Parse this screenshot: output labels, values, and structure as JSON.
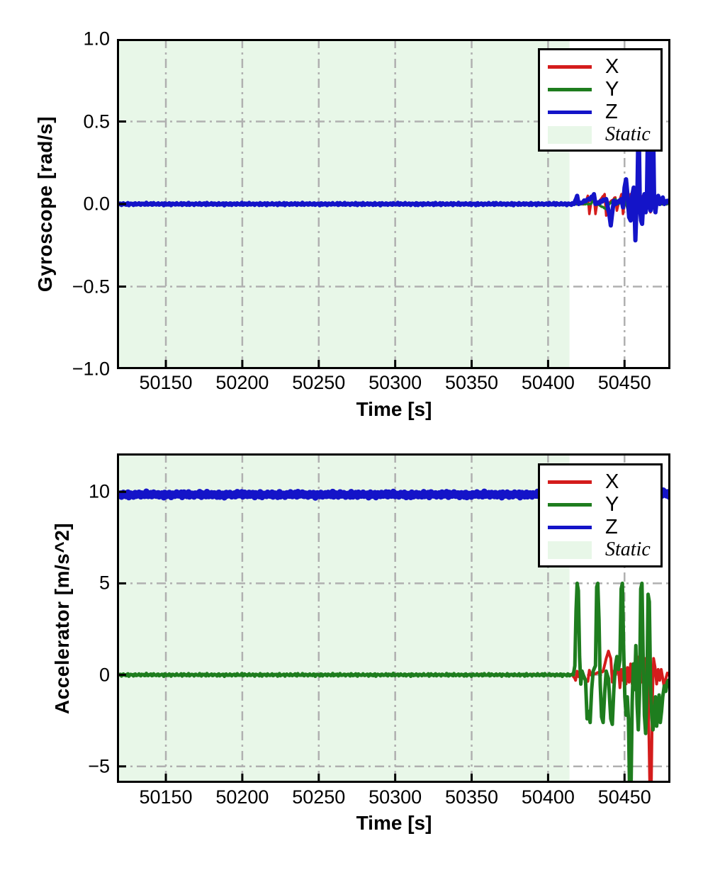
{
  "page": {
    "background": "#ffffff"
  },
  "colors": {
    "x_series": "#d41c1c",
    "y_series": "#1e7d1e",
    "z_series": "#1414c8",
    "static_fill": "#e8f7e8",
    "grid": "#b0b0b0",
    "axis": "#000000"
  },
  "chart_data": [
    {
      "type": "line",
      "id": "gyroscope",
      "title": "",
      "xlabel": "Time [s]",
      "ylabel": "Gyroscope [rad/s]",
      "xlim": [
        50118,
        50480
      ],
      "ylim": [
        -1.0,
        1.0
      ],
      "xtick_values": [
        50150,
        50200,
        50250,
        50300,
        50350,
        50400,
        50450
      ],
      "xtick_labels": [
        "50150",
        "50200",
        "50250",
        "50300",
        "50350",
        "50400",
        "50450"
      ],
      "ytick_values": [
        1.0,
        0.5,
        0.0,
        -0.5,
        -1.0
      ],
      "ytick_labels": [
        "1.0",
        "0.5",
        "0.0",
        "−0.5",
        "−1.0"
      ],
      "grid": true,
      "grid_style": "dash-dot",
      "legend_position": "upper right",
      "static_region": {
        "start": 50118,
        "end": 50414,
        "color": "#e8f7e8",
        "label": "Static"
      },
      "series": [
        {
          "name": "X",
          "color": "#d41c1c",
          "width": 3.5,
          "noise": 0.004,
          "points": [
            [
              50118,
              0
            ],
            [
              50424,
              0
            ],
            [
              50426,
              0.05
            ],
            [
              50427,
              -0.06
            ],
            [
              50428,
              0
            ],
            [
              50430,
              0.05
            ],
            [
              50431,
              -0.06
            ],
            [
              50432,
              0
            ],
            [
              50437,
              0.06
            ],
            [
              50438,
              -0.07
            ],
            [
              50439,
              0
            ],
            [
              50444,
              0.04
            ],
            [
              50445,
              -0.04
            ],
            [
              50446,
              0
            ],
            [
              50448,
              0.06
            ],
            [
              50449,
              -0.06
            ],
            [
              50450,
              0
            ],
            [
              50452,
              0.05
            ],
            [
              50453,
              -0.05
            ],
            [
              50454,
              0.06
            ],
            [
              50455,
              -0.04
            ],
            [
              50456,
              0
            ],
            [
              50458,
              0.05
            ],
            [
              50459,
              -0.05
            ],
            [
              50460,
              0.06
            ],
            [
              50461,
              -0.04
            ],
            [
              50462,
              0.05
            ],
            [
              50463,
              -0.05
            ],
            [
              50464,
              0.04
            ],
            [
              50465,
              0
            ],
            [
              50466,
              0.05
            ],
            [
              50467,
              -0.05
            ],
            [
              50468,
              0
            ],
            [
              50470,
              0.03
            ],
            [
              50472,
              0
            ],
            [
              50480,
              0
            ]
          ]
        },
        {
          "name": "Y",
          "color": "#1e7d1e",
          "width": 3.5,
          "noise": 0.003,
          "points": [
            [
              50118,
              0
            ],
            [
              50428,
              0
            ],
            [
              50430,
              0.03
            ],
            [
              50432,
              0
            ],
            [
              50438,
              -0.03
            ],
            [
              50440,
              0
            ],
            [
              50444,
              0.03
            ],
            [
              50446,
              0
            ],
            [
              50450,
              0.04
            ],
            [
              50452,
              -0.03
            ],
            [
              50454,
              0
            ],
            [
              50458,
              0.03
            ],
            [
              50460,
              -0.03
            ],
            [
              50462,
              0.04
            ],
            [
              50464,
              0
            ],
            [
              50466,
              0.03
            ],
            [
              50468,
              0
            ],
            [
              50480,
              0
            ]
          ]
        },
        {
          "name": "Z",
          "color": "#1414c8",
          "width": 6,
          "noise": 0.008,
          "points": [
            [
              50118,
              0
            ],
            [
              50417,
              0
            ],
            [
              50419,
              0.05
            ],
            [
              50420,
              0
            ],
            [
              50429,
              0.04
            ],
            [
              50430,
              0.06
            ],
            [
              50431,
              0
            ],
            [
              50438,
              0.03
            ],
            [
              50440,
              -0.06
            ],
            [
              50441,
              -0.13
            ],
            [
              50442,
              -0.05
            ],
            [
              50443,
              0.02
            ],
            [
              50444,
              0
            ],
            [
              50448,
              0.03
            ],
            [
              50449,
              -0.02
            ],
            [
              50450,
              0.1
            ],
            [
              50451,
              0.15
            ],
            [
              50452,
              0.05
            ],
            [
              50453,
              -0.08
            ],
            [
              50454,
              -0.1
            ],
            [
              50455,
              0.05
            ],
            [
              50456,
              0.1
            ],
            [
              50456.6,
              -0.05
            ],
            [
              50457.1,
              -0.22
            ],
            [
              50457.8,
              -0.03
            ],
            [
              50458.4,
              0.06
            ],
            [
              50459.2,
              0.55
            ],
            [
              50460,
              0
            ],
            [
              50460.8,
              -0.1
            ],
            [
              50461.5,
              -0.12
            ],
            [
              50462.3,
              0.02
            ],
            [
              50463,
              0.06
            ],
            [
              50463.8,
              -0.05
            ],
            [
              50464.6,
              0.02
            ],
            [
              50465.4,
              0.55
            ],
            [
              50466.2,
              0
            ],
            [
              50467,
              -0.04
            ],
            [
              50467.8,
              0.03
            ],
            [
              50468.6,
              0.55
            ],
            [
              50469.4,
              0
            ],
            [
              50470.2,
              -0.05
            ],
            [
              50471,
              0.02
            ],
            [
              50472,
              0.05
            ],
            [
              50473,
              0
            ],
            [
              50475,
              0.04
            ],
            [
              50476,
              0
            ],
            [
              50478,
              0.02
            ],
            [
              50480,
              0
            ]
          ]
        }
      ]
    },
    {
      "type": "line",
      "id": "accelerator",
      "title": "",
      "xlabel": "Time [s]",
      "ylabel": "Accelerator [m/s^2]",
      "xlim": [
        50118,
        50480
      ],
      "ylim": [
        -5.9,
        12.1
      ],
      "xtick_values": [
        50150,
        50200,
        50250,
        50300,
        50350,
        50400,
        50450
      ],
      "xtick_labels": [
        "50150",
        "50200",
        "50250",
        "50300",
        "50350",
        "50400",
        "50450"
      ],
      "ytick_values": [
        10,
        5,
        0,
        -5
      ],
      "ytick_labels": [
        "10",
        "5",
        "0",
        "−5"
      ],
      "grid": true,
      "grid_style": "dash-dot",
      "legend_position": "upper right",
      "static_region": {
        "start": 50118,
        "end": 50414,
        "color": "#e8f7e8",
        "label": "Static"
      },
      "series": [
        {
          "name": "X",
          "color": "#d41c1c",
          "width": 4,
          "noise": 0.05,
          "points": [
            [
              50118,
              0
            ],
            [
              50416,
              0
            ],
            [
              50418,
              -0.3
            ],
            [
              50419,
              0.2
            ],
            [
              50420,
              -0.1
            ],
            [
              50421,
              0
            ],
            [
              50426,
              -0.35
            ],
            [
              50427,
              0.25
            ],
            [
              50428,
              0
            ],
            [
              50436,
              0.2
            ],
            [
              50438,
              0.9
            ],
            [
              50439.5,
              1.3
            ],
            [
              50441,
              0.9
            ],
            [
              50442,
              -0.4
            ],
            [
              50443,
              0.2
            ],
            [
              50444,
              0
            ],
            [
              50446,
              0.4
            ],
            [
              50447,
              -0.7
            ],
            [
              50448,
              0.3
            ],
            [
              50449,
              -0.3
            ],
            [
              50450,
              0.5
            ],
            [
              50451,
              -0.5
            ],
            [
              50452,
              0.4
            ],
            [
              50453,
              -0.4
            ],
            [
              50454,
              0.6
            ],
            [
              50455,
              -0.5
            ],
            [
              50456,
              0.4
            ],
            [
              50457,
              -0.3
            ],
            [
              50458,
              1.0
            ],
            [
              50459,
              0.5
            ],
            [
              50460,
              1.2
            ],
            [
              50460.8,
              -0.4
            ],
            [
              50461.6,
              0.8
            ],
            [
              50462.4,
              -0.6
            ],
            [
              50463.2,
              0.9
            ],
            [
              50464,
              -0.8
            ],
            [
              50465,
              0.5
            ],
            [
              50465.8,
              -2.5
            ],
            [
              50466.6,
              -6.5
            ],
            [
              50467.4,
              -6.8
            ],
            [
              50468.2,
              -1.5
            ],
            [
              50469,
              0.9
            ],
            [
              50470,
              0.4
            ],
            [
              50471,
              -0.5
            ],
            [
              50472,
              0.3
            ],
            [
              50473,
              -0.3
            ],
            [
              50474,
              0.3
            ],
            [
              50475,
              -0.2
            ],
            [
              50476,
              -0.7
            ],
            [
              50477,
              -0.2
            ],
            [
              50478,
              0.1
            ],
            [
              50480,
              -0.1
            ]
          ]
        },
        {
          "name": "Y",
          "color": "#1e7d1e",
          "width": 5,
          "noise": 0.08,
          "points": [
            [
              50118,
              0
            ],
            [
              50416.5,
              0
            ],
            [
              50417.5,
              0.5
            ],
            [
              50418.3,
              3.5
            ],
            [
              50419,
              5.0
            ],
            [
              50419.8,
              4.6
            ],
            [
              50420.6,
              1.0
            ],
            [
              50421.4,
              -0.5
            ],
            [
              50422.2,
              0.2
            ],
            [
              50423,
              0
            ],
            [
              50424.5,
              -0.3
            ],
            [
              50425.5,
              -2.4
            ],
            [
              50426.5,
              -2.0
            ],
            [
              50427.5,
              -2.6
            ],
            [
              50428.5,
              -0.8
            ],
            [
              50429.5,
              0.2
            ],
            [
              50431,
              0.5
            ],
            [
              50431.8,
              4.8
            ],
            [
              50432.5,
              5.0
            ],
            [
              50433.3,
              3.0
            ],
            [
              50434.1,
              -0.5
            ],
            [
              50435,
              -2.3
            ],
            [
              50436,
              -2.6
            ],
            [
              50437,
              -1.0
            ],
            [
              50438,
              0.2
            ],
            [
              50439.5,
              -0.2
            ],
            [
              50441,
              -2.4
            ],
            [
              50442,
              -2.7
            ],
            [
              50443,
              -0.8
            ],
            [
              50444,
              0.5
            ],
            [
              50445,
              1.0
            ],
            [
              50446,
              0.3
            ],
            [
              50447,
              0.8
            ],
            [
              50447.8,
              4.7
            ],
            [
              50448.6,
              5.0
            ],
            [
              50449.4,
              1.5
            ],
            [
              50450.2,
              -1.2
            ],
            [
              50451,
              -2.2
            ],
            [
              50451.8,
              -1.2
            ],
            [
              50452.6,
              -2.5
            ],
            [
              50453.4,
              -6.8
            ],
            [
              50454.2,
              -6.5
            ],
            [
              50455,
              -1.5
            ],
            [
              50455.8,
              0.6
            ],
            [
              50456.6,
              -0.8
            ],
            [
              50457.4,
              1.6
            ],
            [
              50458.2,
              -1.6
            ],
            [
              50459,
              -3.0
            ],
            [
              50459.8,
              -1.0
            ],
            [
              50460.6,
              4.7
            ],
            [
              50461.4,
              5.0
            ],
            [
              50462.2,
              0.8
            ],
            [
              50463,
              -2.2
            ],
            [
              50463.8,
              -3.2
            ],
            [
              50464.6,
              -1.0
            ],
            [
              50465.4,
              4.4
            ],
            [
              50466.2,
              4.0
            ],
            [
              50467,
              -0.5
            ],
            [
              50467.8,
              -2.2
            ],
            [
              50468.6,
              -3.0
            ],
            [
              50469.4,
              -2.4
            ],
            [
              50470.2,
              -1.2
            ],
            [
              50471,
              -2.8
            ],
            [
              50471.8,
              -2.2
            ],
            [
              50472.6,
              -1.1
            ],
            [
              50473.4,
              -2.6
            ],
            [
              50474.2,
              -2.0
            ],
            [
              50475,
              -1.2
            ],
            [
              50476,
              -0.6
            ],
            [
              50477,
              -0.9
            ],
            [
              50478,
              -0.4
            ],
            [
              50480,
              -0.3
            ]
          ]
        },
        {
          "name": "Z",
          "color": "#1414c8",
          "width": 9,
          "noise": 0.16,
          "points": [
            [
              50118,
              9.85
            ],
            [
              50470,
              9.85
            ],
            [
              50474,
              9.9
            ],
            [
              50476,
              10.0
            ],
            [
              50477,
              9.9
            ],
            [
              50480,
              9.85
            ]
          ]
        }
      ]
    }
  ]
}
